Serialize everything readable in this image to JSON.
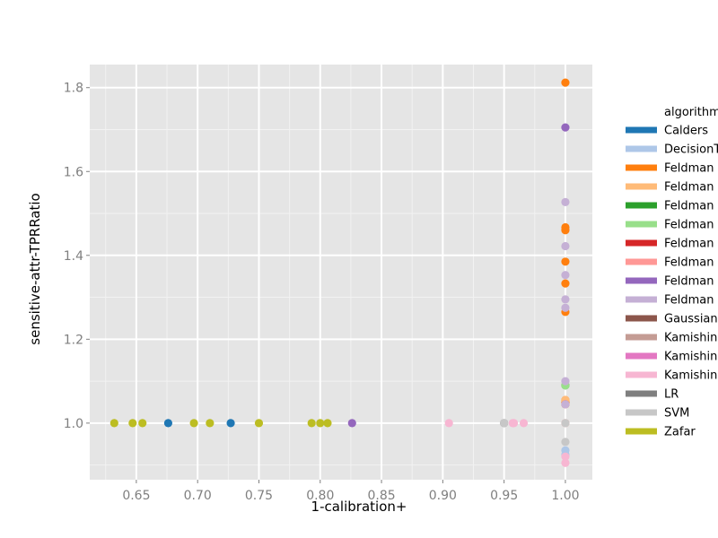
{
  "colors": {
    "panel_bg": "#e5e5e5",
    "grid_major": "#ffffff",
    "grid_minor": "#f2f2f2"
  },
  "chart_data": {
    "type": "scatter",
    "xlabel": "1-calibration+",
    "ylabel": "sensitive-attr-TPRRatio",
    "xlim": [
      0.612,
      1.022
    ],
    "ylim": [
      0.865,
      1.855
    ],
    "x_ticks": [
      0.65,
      0.7,
      0.75,
      0.8,
      0.85,
      0.9,
      0.95,
      1.0
    ],
    "x_tick_labels": [
      "0.65",
      "0.70",
      "0.75",
      "0.80",
      "0.85",
      "0.90",
      "0.95",
      "1.00"
    ],
    "y_ticks": [
      1.0,
      1.2,
      1.4,
      1.6,
      1.8
    ],
    "y_tick_labels": [
      "1.0",
      "1.2",
      "1.4",
      "1.6",
      "1.8"
    ],
    "grid": true,
    "legend_title": "algorithm",
    "legend_position": "right",
    "series": [
      {
        "name": "Calders",
        "color": "#1f77b4",
        "points": [
          [
            0.676,
            1.0
          ],
          [
            0.727,
            1.0
          ]
        ]
      },
      {
        "name": "DecisionTree",
        "color": "#aec7e8",
        "points": [
          [
            1.0,
            0.935
          ],
          [
            1.0,
            0.925
          ]
        ]
      },
      {
        "name": "Feldman-DecisionTree",
        "color": "#ff7f0e",
        "points": [
          [
            1.0,
            1.812
          ],
          [
            1.0,
            1.467
          ],
          [
            1.0,
            1.46
          ],
          [
            1.0,
            1.385
          ],
          [
            1.0,
            1.333
          ],
          [
            1.0,
            1.265
          ],
          [
            1.0,
            1.055
          ],
          [
            1.0,
            1.05
          ]
        ]
      },
      {
        "name": "Feldman-GaussianNB",
        "color": "#ffbb78",
        "points": [
          [
            1.0,
            1.055
          ]
        ]
      },
      {
        "name": "Feldman-Kamishima",
        "color": "#2ca02c",
        "points": [
          [
            1.0,
            1.09
          ]
        ]
      },
      {
        "name": "Feldman-LR",
        "color": "#98df8a",
        "points": [
          [
            1.0,
            1.09
          ]
        ]
      },
      {
        "name": "Feldman-SVM",
        "color": "#d62728",
        "points": [
          [
            1.0,
            1.045
          ]
        ]
      },
      {
        "name": "Feldman-Zafar",
        "color": "#ff9896",
        "points": [
          [
            1.0,
            1.0
          ]
        ]
      },
      {
        "name": "Feldman-Calders",
        "color": "#9467bd",
        "points": [
          [
            1.0,
            1.705
          ],
          [
            0.826,
            1.0
          ]
        ]
      },
      {
        "name": "Feldman-Kamishima-accuracy",
        "color": "#c5b0d5",
        "points": [
          [
            1.0,
            1.527
          ],
          [
            1.0,
            1.422
          ],
          [
            1.0,
            1.353
          ],
          [
            1.0,
            1.295
          ],
          [
            1.0,
            1.275
          ],
          [
            1.0,
            1.1
          ],
          [
            1.0,
            1.045
          ]
        ]
      },
      {
        "name": "GaussianNB",
        "color": "#8c564b",
        "points": []
      },
      {
        "name": "Kamishima",
        "color": "#c49c94",
        "points": []
      },
      {
        "name": "Kamishima-accuracy",
        "color": "#e377c2",
        "points": []
      },
      {
        "name": "Kamishima-DIavgall",
        "color": "#f7b6d2",
        "points": [
          [
            0.905,
            1.0
          ],
          [
            0.957,
            1.0
          ],
          [
            0.958,
            1.0
          ],
          [
            0.966,
            1.0
          ],
          [
            1.0,
            0.92
          ],
          [
            1.0,
            0.905
          ]
        ]
      },
      {
        "name": "LR",
        "color": "#7f7f7f",
        "points": [
          [
            0.95,
            1.0
          ]
        ]
      },
      {
        "name": "SVM",
        "color": "#c7c7c7",
        "points": [
          [
            0.95,
            1.0
          ],
          [
            1.0,
            1.0
          ],
          [
            1.0,
            0.955
          ]
        ]
      },
      {
        "name": "Zafar",
        "color": "#bcbd22",
        "points": [
          [
            0.632,
            1.0
          ],
          [
            0.647,
            1.0
          ],
          [
            0.655,
            1.0
          ],
          [
            0.697,
            1.0
          ],
          [
            0.71,
            1.0
          ],
          [
            0.75,
            1.0
          ],
          [
            0.793,
            1.0
          ],
          [
            0.8,
            1.0
          ],
          [
            0.806,
            1.0
          ]
        ]
      }
    ],
    "legend": [
      {
        "label": "Calders",
        "color": "#1f77b4"
      },
      {
        "label": "DecisionT",
        "color": "#aec7e8"
      },
      {
        "label": "Feldman",
        "color": "#ff7f0e"
      },
      {
        "label": "Feldman",
        "color": "#ffbb78"
      },
      {
        "label": "Feldman",
        "color": "#2ca02c"
      },
      {
        "label": "Feldman",
        "color": "#98df8a"
      },
      {
        "label": "Feldman",
        "color": "#d62728"
      },
      {
        "label": "Feldman",
        "color": "#ff9896"
      },
      {
        "label": "Feldman",
        "color": "#9467bd"
      },
      {
        "label": "Feldman",
        "color": "#c5b0d5"
      },
      {
        "label": "Gaussian",
        "color": "#8c564b"
      },
      {
        "label": "Kamishin",
        "color": "#c49c94"
      },
      {
        "label": "Kamishin",
        "color": "#e377c2"
      },
      {
        "label": "Kamishin",
        "color": "#f7b6d2"
      },
      {
        "label": "LR",
        "color": "#7f7f7f"
      },
      {
        "label": "SVM",
        "color": "#c7c7c7"
      },
      {
        "label": "Zafar",
        "color": "#bcbd22"
      }
    ]
  }
}
